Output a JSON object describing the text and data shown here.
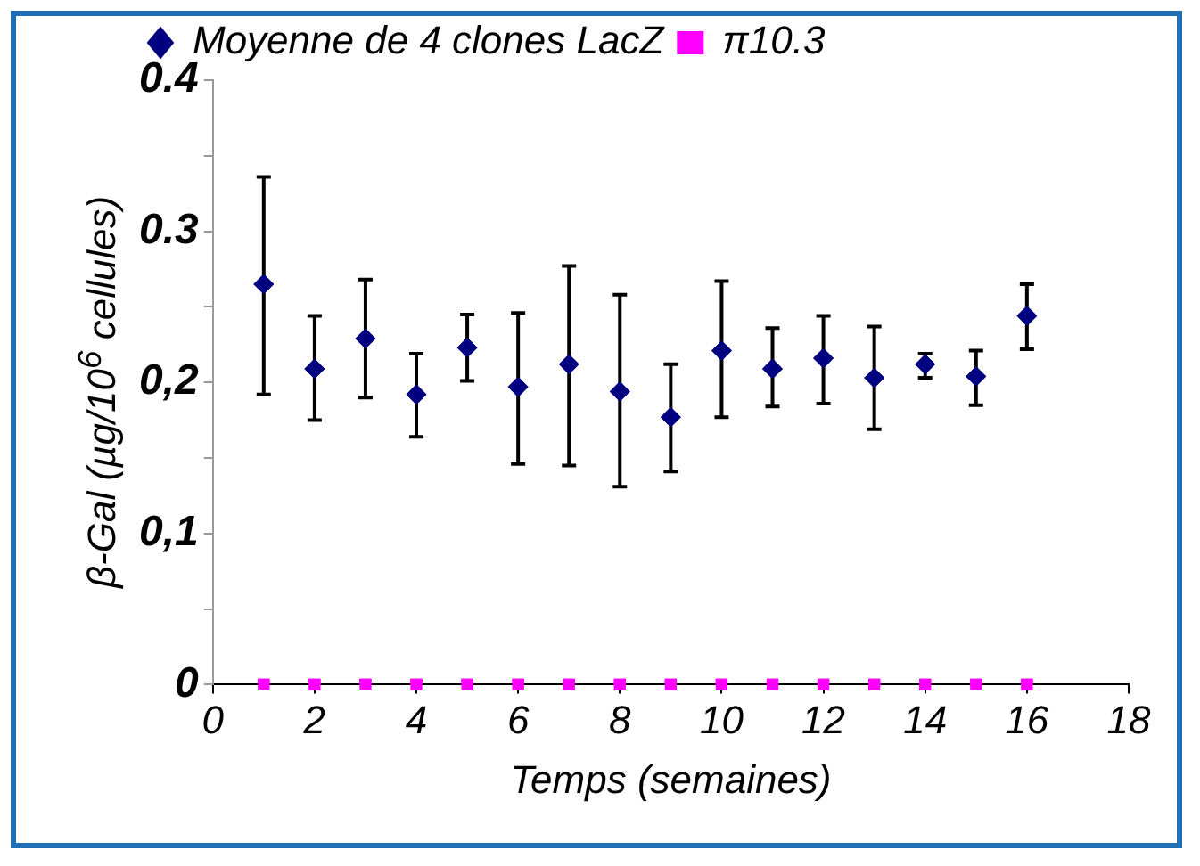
{
  "chart_data": {
    "type": "scatter",
    "xlabel": "Temps (semaines)",
    "ylabel": "β-Gal  (µg/10$^{6}$ cellules)",
    "x": [
      1,
      2,
      3,
      4,
      5,
      6,
      7,
      8,
      9,
      10,
      11,
      12,
      13,
      14,
      15,
      16
    ],
    "series": [
      {
        "name": "Moyenne de 4 clones LacZ",
        "color": "#000080",
        "marker": "diamond",
        "values": [
          0.265,
          0.209,
          0.229,
          0.192,
          0.223,
          0.197,
          0.212,
          0.194,
          0.177,
          0.221,
          0.209,
          0.216,
          0.203,
          0.212,
          0.204,
          0.244
        ],
        "errors": [
          [
            0.192,
            0.336
          ],
          [
            0.175,
            0.244
          ],
          [
            0.19,
            0.268
          ],
          [
            0.164,
            0.219
          ],
          [
            0.201,
            0.245
          ],
          [
            0.146,
            0.246
          ],
          [
            0.145,
            0.277
          ],
          [
            0.131,
            0.258
          ],
          [
            0.141,
            0.212
          ],
          [
            0.177,
            0.267
          ],
          [
            0.184,
            0.236
          ],
          [
            0.186,
            0.244
          ],
          [
            0.169,
            0.237
          ],
          [
            0.203,
            0.219
          ],
          [
            0.185,
            0.221
          ],
          [
            0.222,
            0.265
          ]
        ]
      },
      {
        "name": "π10.3",
        "color": "#ff00ff",
        "marker": "square",
        "values": [
          0,
          0,
          0,
          0,
          0,
          0,
          0,
          0,
          0,
          0,
          0,
          0,
          0,
          0,
          0,
          0
        ]
      }
    ],
    "xlim": [
      0,
      18
    ],
    "xticks": [
      0,
      2,
      4,
      6,
      8,
      10,
      12,
      14,
      16,
      18
    ],
    "ylim": [
      0,
      0.4
    ],
    "yticks": [
      0,
      {
        "value": 0.05,
        "label": null
      },
      {
        "value": 0.1,
        "label": "0,1"
      },
      {
        "value": 0.15,
        "label": null
      },
      {
        "value": 0.2,
        "label": "0,2"
      },
      {
        "value": 0.25,
        "label": null
      },
      0.3,
      {
        "value": 0.35,
        "label": null
      },
      0.4
    ],
    "grid": false,
    "legend": "top"
  }
}
